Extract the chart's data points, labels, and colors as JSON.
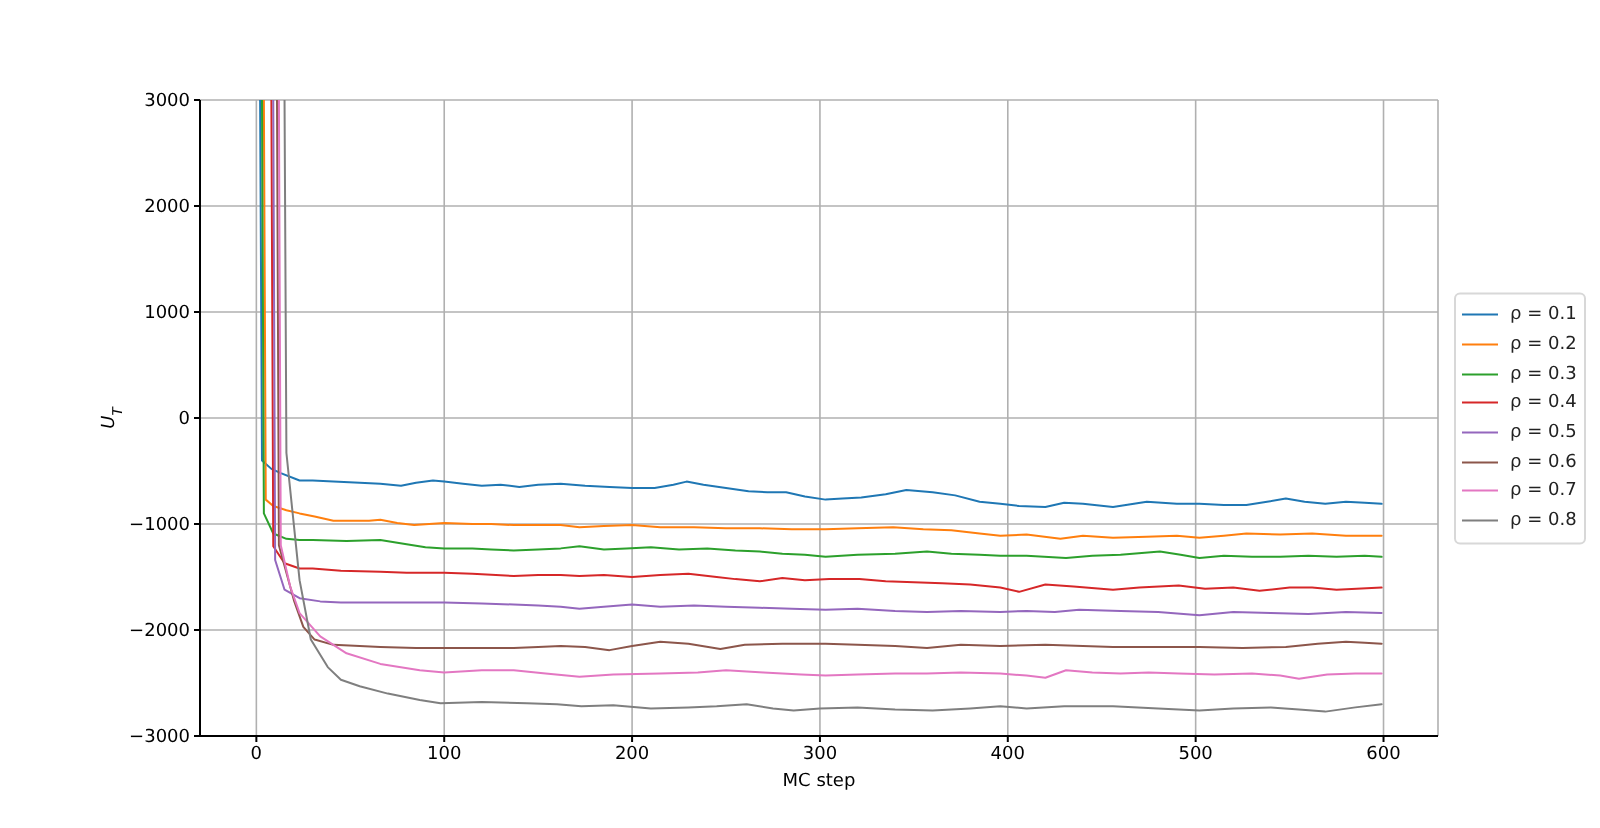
{
  "chart_data": {
    "type": "line",
    "xlabel": "MC step",
    "ylabel": "U$_{T}$",
    "xlim": [
      -30,
      629
    ],
    "xticks": [
      0,
      100,
      200,
      300,
      400,
      500,
      600
    ],
    "ylim": [
      -3000,
      3000
    ],
    "yticks": [
      {
        "value": -3000,
        "label": "−3000"
      },
      {
        "value": -2000,
        "label": "−2000"
      },
      {
        "value": -1000,
        "label": "−1000"
      },
      0,
      1000,
      2000,
      3000
    ],
    "grid": true,
    "legend": "right",
    "line_style": "solid",
    "series": [
      {
        "name": "ρ = 0.1",
        "color": "#1f77b4",
        "x": [
          2,
          3,
          8,
          13,
          23,
          30,
          41,
          55,
          66,
          77,
          85,
          94,
          100,
          110,
          120,
          130,
          140,
          150,
          162,
          175,
          188,
          200,
          212,
          222,
          229,
          238,
          250,
          262,
          272,
          282,
          292,
          303,
          312,
          322,
          335,
          346,
          360,
          372,
          385,
          396,
          406,
          420,
          430,
          440,
          456,
          474,
          490,
          502,
          515,
          527,
          538,
          548,
          558,
          569,
          580,
          590,
          599
        ],
        "values": [
          3000,
          -400,
          -480,
          -520,
          -590,
          -590,
          -600,
          -610,
          -620,
          -640,
          -610,
          -590,
          -600,
          -620,
          -640,
          -630,
          -650,
          -630,
          -620,
          -640,
          -650,
          -660,
          -660,
          -630,
          -600,
          -630,
          -660,
          -690,
          -700,
          -700,
          -740,
          -770,
          -760,
          -750,
          -720,
          -680,
          -700,
          -730,
          -790,
          -810,
          -830,
          -840,
          -800,
          -810,
          -840,
          -790,
          -810,
          -810,
          -820,
          -820,
          -790,
          -760,
          -790,
          -810,
          -790,
          -800,
          -810
        ]
      },
      {
        "name": "ρ = 0.2",
        "color": "#ff7f0e",
        "x": [
          4,
          5,
          9,
          16,
          23,
          31,
          41,
          48,
          60,
          66,
          75,
          84,
          92,
          100,
          115,
          125,
          137,
          150,
          162,
          172,
          185,
          200,
          215,
          233,
          250,
          268,
          285,
          303,
          320,
          339,
          355,
          370,
          385,
          396,
          410,
          428,
          440,
          456,
          474,
          490,
          502,
          515,
          527,
          545,
          562,
          580,
          599
        ],
        "values": [
          3000,
          -770,
          -830,
          -870,
          -900,
          -930,
          -970,
          -970,
          -970,
          -960,
          -990,
          -1010,
          -1000,
          -990,
          -1000,
          -1000,
          -1010,
          -1010,
          -1010,
          -1030,
          -1020,
          -1010,
          -1030,
          -1030,
          -1040,
          -1040,
          -1050,
          -1050,
          -1040,
          -1030,
          -1050,
          -1060,
          -1090,
          -1110,
          -1100,
          -1140,
          -1110,
          -1130,
          -1120,
          -1110,
          -1130,
          -1110,
          -1090,
          -1100,
          -1090,
          -1110,
          -1110
        ]
      },
      {
        "name": "ρ = 0.3",
        "color": "#2ca02c",
        "x": [
          3,
          4,
          9,
          16,
          23,
          30,
          48,
          66,
          80,
          90,
          100,
          115,
          125,
          137,
          150,
          162,
          172,
          185,
          197,
          210,
          225,
          240,
          255,
          268,
          280,
          292,
          303,
          320,
          340,
          357,
          370,
          385,
          396,
          410,
          431,
          445,
          460,
          481,
          492,
          502,
          515,
          530,
          545,
          560,
          575,
          590,
          599
        ],
        "values": [
          3000,
          -900,
          -1090,
          -1140,
          -1150,
          -1150,
          -1160,
          -1150,
          -1190,
          -1220,
          -1230,
          -1230,
          -1240,
          -1250,
          -1240,
          -1230,
          -1210,
          -1240,
          -1230,
          -1220,
          -1240,
          -1230,
          -1250,
          -1260,
          -1280,
          -1290,
          -1310,
          -1290,
          -1280,
          -1260,
          -1280,
          -1290,
          -1300,
          -1300,
          -1320,
          -1300,
          -1290,
          -1260,
          -1290,
          -1320,
          -1300,
          -1310,
          -1310,
          -1300,
          -1310,
          -1300,
          -1310
        ]
      },
      {
        "name": "ρ = 0.4",
        "color": "#d62728",
        "x": [
          8,
          9,
          15,
          23,
          30,
          45,
          66,
          80,
          100,
          115,
          137,
          150,
          162,
          172,
          185,
          200,
          215,
          230,
          245,
          255,
          268,
          280,
          292,
          305,
          321,
          335,
          350,
          365,
          380,
          396,
          406,
          420,
          435,
          456,
          470,
          491,
          505,
          520,
          534,
          550,
          562,
          575,
          599
        ],
        "values": [
          3000,
          -1210,
          -1370,
          -1420,
          -1420,
          -1440,
          -1450,
          -1460,
          -1460,
          -1470,
          -1490,
          -1480,
          -1480,
          -1490,
          -1480,
          -1500,
          -1480,
          -1470,
          -1500,
          -1520,
          -1540,
          -1510,
          -1530,
          -1520,
          -1520,
          -1540,
          -1550,
          -1560,
          -1570,
          -1600,
          -1640,
          -1570,
          -1590,
          -1620,
          -1600,
          -1580,
          -1610,
          -1600,
          -1630,
          -1600,
          -1600,
          -1620,
          -1600
        ]
      },
      {
        "name": "ρ = 0.5",
        "color": "#9467bd",
        "x": [
          9,
          10,
          15,
          23,
          34,
          45,
          66,
          85,
          100,
          120,
          137,
          150,
          162,
          172,
          185,
          200,
          215,
          233,
          250,
          268,
          285,
          303,
          320,
          340,
          357,
          375,
          396,
          410,
          425,
          438,
          460,
          480,
          502,
          520,
          540,
          560,
          580,
          599
        ],
        "values": [
          3000,
          -1340,
          -1620,
          -1700,
          -1730,
          -1740,
          -1740,
          -1740,
          -1740,
          -1750,
          -1760,
          -1770,
          -1780,
          -1800,
          -1780,
          -1760,
          -1780,
          -1770,
          -1780,
          -1790,
          -1800,
          -1810,
          -1800,
          -1820,
          -1830,
          -1820,
          -1830,
          -1820,
          -1830,
          -1810,
          -1820,
          -1830,
          -1860,
          -1830,
          -1840,
          -1850,
          -1830,
          -1840
        ]
      },
      {
        "name": "ρ = 0.6",
        "color": "#8c564b",
        "x": [
          11,
          12,
          20,
          25,
          31,
          41,
          55,
          66,
          85,
          100,
          120,
          137,
          150,
          162,
          175,
          188,
          200,
          215,
          230,
          247,
          260,
          280,
          303,
          320,
          340,
          357,
          375,
          396,
          420,
          440,
          456,
          480,
          502,
          525,
          548,
          565,
          580,
          590,
          599
        ],
        "values": [
          3000,
          -1200,
          -1720,
          -1970,
          -2090,
          -2140,
          -2150,
          -2160,
          -2170,
          -2170,
          -2170,
          -2170,
          -2160,
          -2150,
          -2160,
          -2190,
          -2150,
          -2110,
          -2130,
          -2180,
          -2140,
          -2130,
          -2130,
          -2140,
          -2150,
          -2170,
          -2140,
          -2150,
          -2140,
          -2150,
          -2160,
          -2160,
          -2160,
          -2170,
          -2160,
          -2130,
          -2110,
          -2120,
          -2130
        ]
      },
      {
        "name": "ρ = 0.7",
        "color": "#e377c2",
        "x": [
          12,
          13,
          18,
          23,
          34,
          48,
          66,
          87,
          100,
          120,
          137,
          154,
          172,
          190,
          215,
          235,
          250,
          270,
          290,
          303,
          320,
          340,
          357,
          375,
          396,
          410,
          420,
          431,
          445,
          460,
          475,
          491,
          510,
          530,
          545,
          555,
          570,
          585,
          599
        ],
        "values": [
          3000,
          -1200,
          -1590,
          -1840,
          -2060,
          -2220,
          -2320,
          -2380,
          -2400,
          -2380,
          -2380,
          -2410,
          -2440,
          -2420,
          -2410,
          -2400,
          -2380,
          -2400,
          -2420,
          -2430,
          -2420,
          -2410,
          -2410,
          -2400,
          -2410,
          -2430,
          -2450,
          -2380,
          -2400,
          -2410,
          -2400,
          -2410,
          -2420,
          -2410,
          -2430,
          -2460,
          -2420,
          -2410,
          -2410
        ]
      },
      {
        "name": "ρ = 0.8",
        "color": "#7f7f7f",
        "x": [
          15,
          16,
          23,
          29,
          38,
          45,
          55,
          70,
          87,
          98,
          120,
          144,
          160,
          173,
          190,
          210,
          230,
          245,
          261,
          275,
          286,
          300,
          320,
          340,
          360,
          380,
          396,
          410,
          430,
          456,
          480,
          502,
          520,
          540,
          555,
          569,
          585,
          599
        ],
        "values": [
          3000,
          -330,
          -1530,
          -2090,
          -2350,
          -2470,
          -2530,
          -2600,
          -2660,
          -2690,
          -2680,
          -2690,
          -2700,
          -2720,
          -2710,
          -2740,
          -2730,
          -2720,
          -2700,
          -2740,
          -2760,
          -2740,
          -2730,
          -2750,
          -2760,
          -2740,
          -2720,
          -2740,
          -2720,
          -2720,
          -2740,
          -2760,
          -2740,
          -2730,
          -2750,
          -2770,
          -2730,
          -2700
        ]
      }
    ]
  }
}
